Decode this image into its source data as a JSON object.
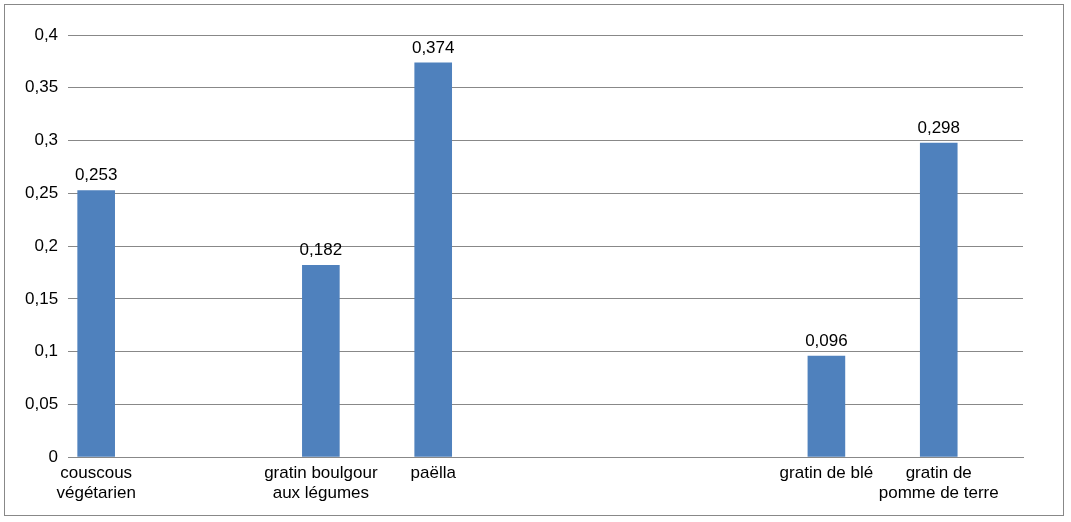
{
  "chart_data": {
    "type": "bar",
    "categories": [
      "couscous végétarien",
      null,
      null,
      null,
      "gratin boulgour aux légumes",
      null,
      "paëlla",
      null,
      null,
      null,
      null,
      null,
      null,
      "gratin de blé",
      null,
      "gratin de pomme de terre",
      null
    ],
    "values": [
      0.253,
      null,
      null,
      null,
      0.182,
      null,
      0.374,
      null,
      null,
      null,
      null,
      null,
      null,
      0.096,
      null,
      0.298,
      null
    ],
    "value_labels": [
      "0,253",
      null,
      null,
      null,
      "0,182",
      null,
      "0,374",
      null,
      null,
      null,
      null,
      null,
      null,
      "0,096",
      null,
      "0,298",
      null
    ],
    "color": "#4f81bd",
    "ylim": [
      0,
      0.4
    ],
    "yticks": [
      {
        "value": 0,
        "label": "0"
      },
      {
        "value": 0.05,
        "label": "0,05"
      },
      {
        "value": 0.1,
        "label": "0,1"
      },
      {
        "value": 0.15,
        "label": "0,15"
      },
      {
        "value": 0.2,
        "label": "0,2"
      },
      {
        "value": 0.25,
        "label": "0,25"
      },
      {
        "value": 0.3,
        "label": "0,3"
      },
      {
        "value": 0.35,
        "label": "0,35"
      },
      {
        "value": 0.4,
        "label": "0,4"
      }
    ],
    "grid": "y",
    "legend": false
  }
}
